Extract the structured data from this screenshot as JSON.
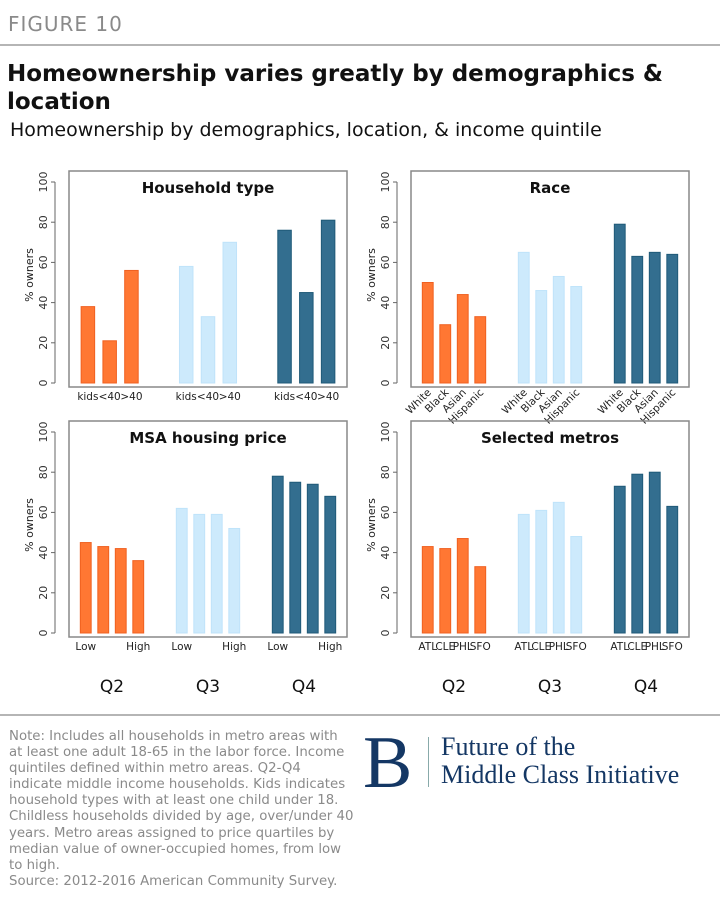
{
  "header": {
    "figure_label": "FIGURE 10",
    "title": "Homeownership varies greatly by demographics & location",
    "subtitle": "Homeownership by demographics, location, & income quintile"
  },
  "colors": {
    "Q2": "#ff7733",
    "Q3": "#cdeafc",
    "Q4": "#336e8f"
  },
  "chart_data": [
    {
      "type": "bar",
      "title": "Household type",
      "ylabel": "% owners",
      "ylim": [
        0,
        100
      ],
      "yticks": [
        0,
        20,
        40,
        60,
        80,
        100
      ],
      "groups": [
        "Q2",
        "Q3",
        "Q4"
      ],
      "categories": [
        "kids",
        "<40",
        ">40"
      ],
      "series": [
        {
          "name": "Q2",
          "values": [
            38,
            21,
            56
          ]
        },
        {
          "name": "Q3",
          "values": [
            58,
            33,
            70
          ]
        },
        {
          "name": "Q4",
          "values": [
            76,
            45,
            81
          ]
        }
      ],
      "label_style": "flat",
      "group_labels_shown": false
    },
    {
      "type": "bar",
      "title": "Race",
      "ylabel": "% owners",
      "ylim": [
        0,
        100
      ],
      "yticks": [
        0,
        20,
        40,
        60,
        80,
        100
      ],
      "groups": [
        "Q2",
        "Q3",
        "Q4"
      ],
      "categories": [
        "White",
        "Black",
        "Asian",
        "Hispanic"
      ],
      "series": [
        {
          "name": "Q2",
          "values": [
            50,
            29,
            44,
            33
          ]
        },
        {
          "name": "Q3",
          "values": [
            65,
            46,
            53,
            48
          ]
        },
        {
          "name": "Q4",
          "values": [
            79,
            63,
            65,
            64
          ]
        }
      ],
      "label_style": "rotated",
      "group_labels_shown": false
    },
    {
      "type": "bar",
      "title": "MSA housing price",
      "ylabel": "% owners",
      "ylim": [
        0,
        100
      ],
      "yticks": [
        0,
        20,
        40,
        60,
        80,
        100
      ],
      "groups": [
        "Q2",
        "Q3",
        "Q4"
      ],
      "categories": [
        "Low",
        "",
        "",
        "High"
      ],
      "series": [
        {
          "name": "Q2",
          "values": [
            45,
            43,
            42,
            36
          ]
        },
        {
          "name": "Q3",
          "values": [
            62,
            59,
            59,
            52
          ]
        },
        {
          "name": "Q4",
          "values": [
            78,
            75,
            74,
            68
          ]
        }
      ],
      "label_style": "flat",
      "group_labels_shown": true
    },
    {
      "type": "bar",
      "title": "Selected metros",
      "ylabel": "% owners",
      "ylim": [
        0,
        100
      ],
      "yticks": [
        0,
        20,
        40,
        60,
        80,
        100
      ],
      "groups": [
        "Q2",
        "Q3",
        "Q4"
      ],
      "categories": [
        "ATL",
        "CLE",
        "PHL",
        "SFO"
      ],
      "series": [
        {
          "name": "Q2",
          "values": [
            43,
            42,
            47,
            33
          ]
        },
        {
          "name": "Q3",
          "values": [
            59,
            61,
            65,
            48
          ]
        },
        {
          "name": "Q4",
          "values": [
            73,
            79,
            80,
            63
          ]
        }
      ],
      "label_style": "flat",
      "group_labels_shown": true
    }
  ],
  "footer": {
    "note": "Note: Includes all households in metro areas with at least one adult 18-65 in the labor force. Income quintiles defined within metro areas. Q2-Q4 indicate middle income households. Kids indicates household types with at least one child under 18. Childless households divided by age, over/under 40 years. Metro areas assigned to price quartiles by median value of owner-occupied homes, from low to high.",
    "source": "Source: 2012-2016 American Community Survey.",
    "logo_letter": "B",
    "logo_line1": "Future of the",
    "logo_line2": "Middle Class Initiative"
  }
}
